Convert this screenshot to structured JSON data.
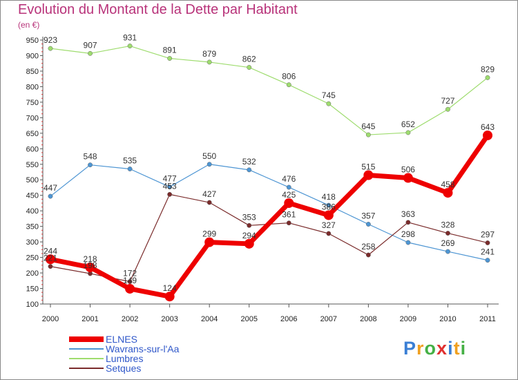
{
  "title": "Evolution du Montant de la Dette par Habitant",
  "unit": "(en €)",
  "logo": {
    "text": "Proxiti",
    "letters": [
      {
        "ch": "P",
        "color": "#3a7fd5"
      },
      {
        "ch": "r",
        "color": "#f0a020"
      },
      {
        "ch": "o",
        "color": "#45b045"
      },
      {
        "ch": "x",
        "color": "#e03030"
      },
      {
        "ch": "i",
        "color": "#3a7fd5"
      },
      {
        "ch": "t",
        "color": "#f0a020"
      },
      {
        "ch": "i",
        "color": "#45b045"
      }
    ]
  },
  "chart_data": {
    "type": "line",
    "x": [
      "2000",
      "2001",
      "2002",
      "2003",
      "2004",
      "2005",
      "2006",
      "2007",
      "2008",
      "2009",
      "2010",
      "2011"
    ],
    "ylim": [
      100,
      950
    ],
    "yticks": [
      100,
      150,
      200,
      250,
      300,
      350,
      400,
      450,
      500,
      550,
      600,
      650,
      700,
      750,
      800,
      850,
      900,
      950
    ],
    "grid": false,
    "legend_position": "bottom-left",
    "series": [
      {
        "name": "ELNES",
        "color": "#ee0000",
        "width": 7,
        "marker_r": 7,
        "values": [
          244,
          218,
          149,
          124,
          299,
          294,
          425,
          386,
          515,
          506,
          458,
          643
        ]
      },
      {
        "name": "Wavrans-sur-l'Aa",
        "color": "#4d95d3",
        "width": 1.2,
        "marker_r": 3.2,
        "values": [
          447,
          548,
          535,
          477,
          550,
          532,
          476,
          418,
          357,
          298,
          269,
          241
        ]
      },
      {
        "name": "Lumbres",
        "color": "#9edc6e",
        "width": 1.2,
        "marker_r": 3.2,
        "values": [
          923,
          907,
          931,
          891,
          879,
          862,
          806,
          745,
          645,
          652,
          727,
          829
        ]
      },
      {
        "name": "Setques",
        "color": "#7a2b2b",
        "width": 1.2,
        "marker_r": 3.2,
        "values": [
          221,
          198,
          172,
          453,
          427,
          353,
          361,
          327,
          258,
          363,
          328,
          297
        ]
      }
    ]
  }
}
